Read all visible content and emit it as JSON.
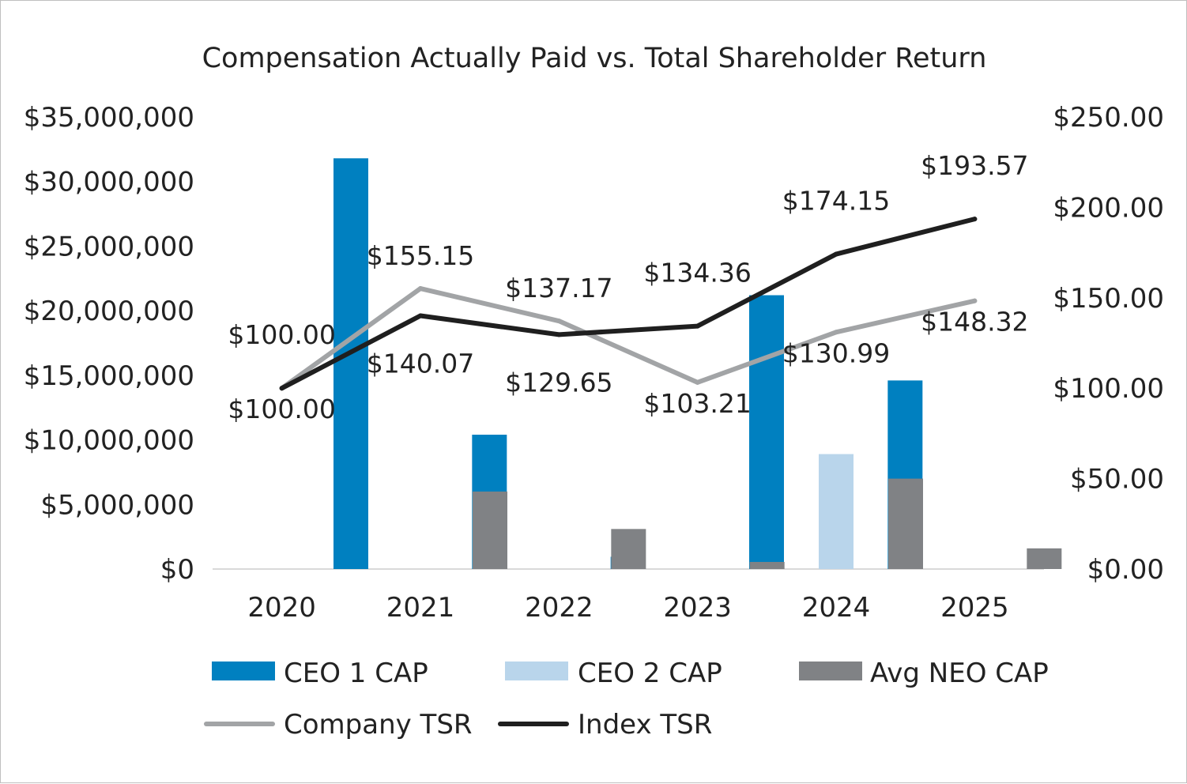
{
  "chart_data": {
    "type": "bar",
    "title": "Compensation Actually Paid vs. Total Shareholder Return",
    "categories": [
      "2020",
      "2021",
      "2022",
      "2023",
      "2024",
      "2025"
    ],
    "y_left": {
      "range": [
        0,
        35000000
      ],
      "tick_values": [
        0,
        5000000,
        10000000,
        15000000,
        20000000,
        25000000,
        30000000,
        35000000
      ],
      "tick_labels": [
        "$0",
        "$5,000,000",
        "$10,000,000",
        "$15,000,000",
        "$20,000,000",
        "$25,000,000",
        "$30,000,000",
        "$35,000,000"
      ]
    },
    "y_right": {
      "range": [
        0,
        250
      ],
      "tick_values": [
        0,
        50,
        100,
        150,
        200,
        250
      ],
      "tick_labels": [
        "$0.00",
        "$50.00",
        "$100.00",
        "$150.00",
        "$200.00",
        "$250.00"
      ]
    },
    "bar_series": [
      {
        "name": "CEO 1 CAP",
        "color": "#0080c0",
        "values": [
          null,
          31800000,
          10400000,
          950000,
          21200000,
          14600000
        ]
      },
      {
        "name": "CEO 2 CAP",
        "color": "#b9d5eb",
        "values": [
          null,
          null,
          null,
          null,
          8900000,
          null
        ]
      },
      {
        "name": "Avg NEO CAP",
        "color": "#808285",
        "values": [
          null,
          6000000,
          3100000,
          550000,
          7000000,
          1600000
        ]
      }
    ],
    "line_series": [
      {
        "name": "Company TSR",
        "color": "#a2a4a6",
        "axis": "right",
        "values": [
          100.0,
          155.15,
          137.17,
          103.21,
          130.99,
          148.32
        ],
        "labels": [
          "$100.00",
          "$155.15",
          "$137.17",
          "$103.21",
          "$130.99",
          "$148.32"
        ]
      },
      {
        "name": "Index TSR",
        "color": "#1f1f1f",
        "axis": "right",
        "values": [
          100.0,
          140.07,
          129.65,
          134.36,
          174.15,
          193.57
        ],
        "labels": [
          "$100.00",
          "$140.07",
          "$129.65",
          "$134.36",
          "$174.15",
          "$193.57"
        ]
      }
    ],
    "grid": false,
    "legend_position": "bottom"
  }
}
